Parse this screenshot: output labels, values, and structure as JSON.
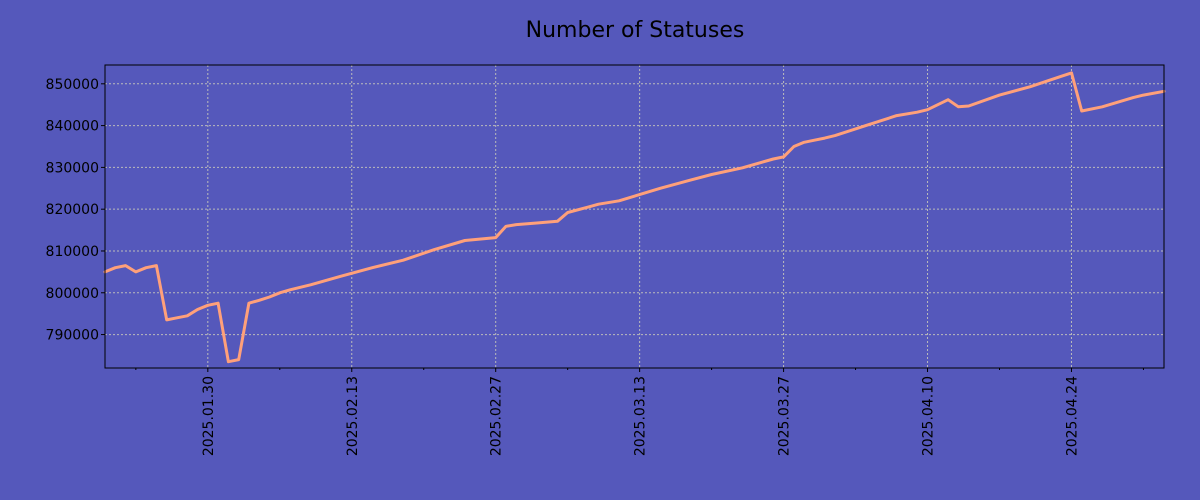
{
  "chart_data": {
    "type": "line",
    "title": "Number of Statuses",
    "xlabel": "",
    "ylabel": "",
    "x_axis": {
      "type": "date",
      "range": [
        "2025-01-20",
        "2025-05-03"
      ],
      "tick_labels": [
        "2025.01.30",
        "2025.02.13",
        "2025.02.27",
        "2025.03.13",
        "2025.03.27",
        "2025.04.10",
        "2025.04.24"
      ],
      "tick_dates": [
        "2025-01-30",
        "2025-02-13",
        "2025-02-27",
        "2025-03-13",
        "2025-03-27",
        "2025-04-10",
        "2025-04-24"
      ]
    },
    "y_axis": {
      "range": [
        782000,
        854500
      ],
      "ticks": [
        790000,
        800000,
        810000,
        820000,
        830000,
        840000,
        850000
      ],
      "tick_labels": [
        "790000",
        "800000",
        "810000",
        "820000",
        "830000",
        "840000",
        "850000"
      ]
    },
    "grid": true,
    "series": [
      {
        "color": "#ffa07a",
        "x": [
          "2025-01-20",
          "2025-01-21",
          "2025-01-22",
          "2025-01-23",
          "2025-01-24",
          "2025-01-25",
          "2025-01-26",
          "2025-01-27",
          "2025-01-28",
          "2025-01-29",
          "2025-01-30",
          "2025-01-31",
          "2025-02-01",
          "2025-02-02",
          "2025-02-03",
          "2025-02-04",
          "2025-02-05",
          "2025-02-06",
          "2025-02-07",
          "2025-02-08",
          "2025-02-09",
          "2025-02-12",
          "2025-02-15",
          "2025-02-18",
          "2025-02-21",
          "2025-02-24",
          "2025-02-27",
          "2025-02-28",
          "2025-03-01",
          "2025-03-03",
          "2025-03-05",
          "2025-03-06",
          "2025-03-08",
          "2025-03-09",
          "2025-03-11",
          "2025-03-15",
          "2025-03-18",
          "2025-03-20",
          "2025-03-23",
          "2025-03-26",
          "2025-03-27",
          "2025-03-28",
          "2025-03-29",
          "2025-03-30",
          "2025-03-31",
          "2025-04-01",
          "2025-04-04",
          "2025-04-07",
          "2025-04-09",
          "2025-04-10",
          "2025-04-12",
          "2025-04-13",
          "2025-04-14",
          "2025-04-17",
          "2025-04-20",
          "2025-04-23",
          "2025-04-24",
          "2025-04-25",
          "2025-04-27",
          "2025-04-30",
          "2025-05-01",
          "2025-05-03"
        ],
        "y": [
          805000,
          806000,
          806500,
          805000,
          806000,
          806500,
          793500,
          794000,
          794500,
          796000,
          797000,
          797500,
          783500,
          784000,
          797500,
          798200,
          799000,
          800000,
          800700,
          801300,
          801900,
          804000,
          806000,
          807800,
          810300,
          812500,
          813200,
          815900,
          816300,
          816700,
          817100,
          819200,
          820500,
          821200,
          822000,
          825000,
          827000,
          828300,
          829900,
          832000,
          832500,
          835000,
          836000,
          836500,
          837000,
          837600,
          840000,
          842400,
          843200,
          843800,
          846200,
          844500,
          844700,
          847300,
          849300,
          851800,
          852600,
          843500,
          844500,
          846700,
          847300,
          848200
        ]
      }
    ]
  }
}
